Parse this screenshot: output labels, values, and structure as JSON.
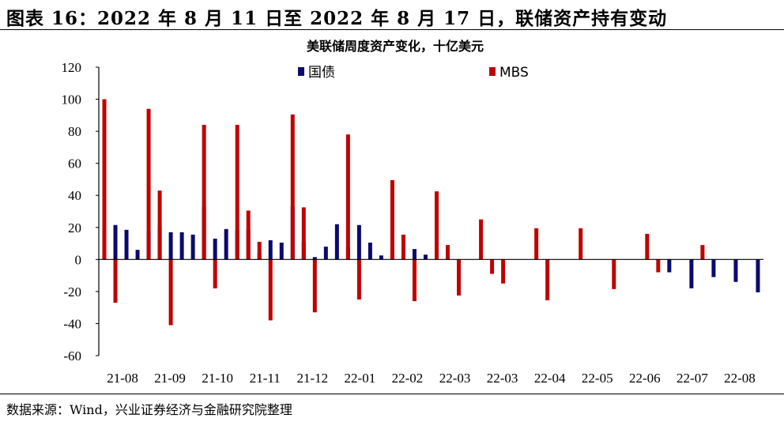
{
  "figure_title": "图表 16：2022 年 8 月 11 日至 2022 年 8 月 17 日，联储资产持有变动",
  "source_note": "数据来源：Wind，兴业证券经济与金融研究院整理",
  "colors": {
    "treasury": "#0a0a6e",
    "mbs": "#c00000",
    "axis": "#000000"
  },
  "chart_data": {
    "type": "bar",
    "title": "美联储周度资产变化，十亿美元",
    "ylim": [
      -60,
      120
    ],
    "yticks": [
      120,
      100,
      80,
      60,
      40,
      20,
      0,
      -20,
      -40,
      -60
    ],
    "xlabel": "",
    "ylabel": "",
    "x_tick_labels": [
      "21-08",
      "21-09",
      "21-10",
      "21-11",
      "21-12",
      "22-01",
      "22-02",
      "22-03",
      "22-03",
      "22-04",
      "22-05",
      "22-06",
      "22-07",
      "22-08"
    ],
    "legend": [
      "国债",
      "MBS"
    ],
    "series": [
      {
        "name": "国债",
        "values": [
          19.5,
          21.5,
          18.5,
          6,
          18,
          20.5,
          17,
          17,
          15.5,
          33,
          13,
          19,
          18.5,
          19,
          4,
          12,
          10.5,
          33.5,
          11,
          1.5,
          8,
          22,
          7.5,
          21.5,
          10.5,
          2.5,
          6,
          2.5,
          6.5,
          3,
          5,
          1.5,
          0,
          0,
          0,
          0,
          0,
          0,
          0,
          0,
          0,
          0,
          0,
          0,
          0,
          0,
          0,
          0,
          0,
          0,
          0,
          -8,
          0,
          -18,
          0,
          -11,
          0,
          -14,
          0,
          -20.5
        ]
      },
      {
        "name": "MBS",
        "values": [
          100,
          -27,
          0,
          0,
          94,
          43,
          -41,
          0,
          0,
          84,
          -18,
          0,
          84,
          30.5,
          11,
          -38,
          0,
          90.5,
          32.5,
          -33,
          0,
          0,
          78,
          -25,
          0,
          0,
          49.5,
          15.5,
          -26,
          0,
          42.5,
          9,
          -22.5,
          0,
          25,
          -9,
          -15,
          0,
          0,
          19.5,
          -25.5,
          0,
          0,
          19.5,
          0,
          0,
          -18.5,
          0,
          0,
          16,
          -8,
          0,
          0,
          0,
          9,
          0,
          0,
          0,
          0,
          0
        ]
      }
    ]
  }
}
